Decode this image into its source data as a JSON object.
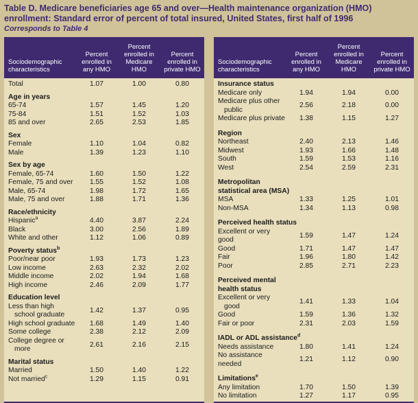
{
  "header": {
    "title": "Table D. Medicare beneficiaries age 65 and over—Health maintenance organization (HMO) enrollment: Standard error of percent of total insured, United States, first half of 1996",
    "subtitle": "Corresponds to Table 4"
  },
  "colors": {
    "purple": "#3f2a70",
    "page_background": "#d0c299",
    "table_background": "#e9dfbd",
    "header_text": "#ffffff"
  },
  "columns": [
    {
      "lines": [
        "Sociodemographic",
        "characteristics"
      ]
    },
    {
      "lines": [
        "Percent",
        "enrolled in",
        "any HMO"
      ]
    },
    {
      "lines": [
        "Percent",
        "enrolled in",
        "Medicare",
        "HMO"
      ]
    },
    {
      "lines": [
        "Percent",
        "enrolled in",
        "private HMO"
      ]
    }
  ],
  "tables": [
    {
      "name": "left",
      "rows": [
        {
          "t": "data",
          "label": "Total",
          "v": [
            "1.07",
            "1.00",
            "0.80"
          ]
        },
        {
          "t": "gap"
        },
        {
          "t": "sec",
          "label": "Age in years"
        },
        {
          "t": "data",
          "label": "65-74",
          "v": [
            "1.57",
            "1.45",
            "1.20"
          ]
        },
        {
          "t": "data",
          "label": "75-84",
          "v": [
            "1.51",
            "1.52",
            "1.03"
          ]
        },
        {
          "t": "data",
          "label": "85 and over",
          "v": [
            "2.65",
            "2.53",
            "1.85"
          ]
        },
        {
          "t": "gap"
        },
        {
          "t": "sec",
          "label": "Sex"
        },
        {
          "t": "data",
          "label": "Female",
          "v": [
            "1.10",
            "1.04",
            "0.82"
          ]
        },
        {
          "t": "data",
          "label": "Male",
          "v": [
            "1.39",
            "1.23",
            "1.10"
          ]
        },
        {
          "t": "gap"
        },
        {
          "t": "sec",
          "label": "Sex by age"
        },
        {
          "t": "data",
          "label": "Female, 65-74",
          "v": [
            "1.60",
            "1.50",
            "1.22"
          ]
        },
        {
          "t": "data",
          "label": "Female, 75 and over",
          "v": [
            "1.55",
            "1.52",
            "1.08"
          ]
        },
        {
          "t": "data",
          "label": "Male, 65-74",
          "v": [
            "1.98",
            "1.72",
            "1.65"
          ]
        },
        {
          "t": "data",
          "label": "Male, 75 and over",
          "v": [
            "1.88",
            "1.71",
            "1.36"
          ]
        },
        {
          "t": "gap"
        },
        {
          "t": "sec",
          "label": "Race/ethnicity"
        },
        {
          "t": "data",
          "label": "Hispanic^a",
          "v": [
            "4.40",
            "3.87",
            "2.24"
          ]
        },
        {
          "t": "data",
          "label": "Black",
          "v": [
            "3.00",
            "2.56",
            "1.89"
          ]
        },
        {
          "t": "data",
          "label": "White and other",
          "v": [
            "1.12",
            "1.06",
            "0.89"
          ]
        },
        {
          "t": "gap"
        },
        {
          "t": "sec",
          "label": "Poverty status^b"
        },
        {
          "t": "data",
          "label": "Poor/near poor",
          "v": [
            "1.93",
            "1.73",
            "1.23"
          ]
        },
        {
          "t": "data",
          "label": "Low income",
          "v": [
            "2.63",
            "2.32",
            "2.02"
          ]
        },
        {
          "t": "data",
          "label": "Middle income",
          "v": [
            "2.02",
            "1.94",
            "1.68"
          ]
        },
        {
          "t": "data",
          "label": "High income",
          "v": [
            "2.46",
            "2.09",
            "1.77"
          ]
        },
        {
          "t": "gap"
        },
        {
          "t": "sec",
          "label": "Education level"
        },
        {
          "t": "data2",
          "lines": [
            "Less than high",
            "school graduate"
          ],
          "v": [
            "1.42",
            "1.37",
            "0.95"
          ]
        },
        {
          "t": "data",
          "label": "High school graduate",
          "v": [
            "1.68",
            "1.49",
            "1.40"
          ]
        },
        {
          "t": "data",
          "label": "Some college",
          "v": [
            "2.38",
            "2.12",
            "2.09"
          ]
        },
        {
          "t": "data2",
          "lines": [
            "College degree or",
            "more"
          ],
          "v": [
            "2.61",
            "2.16",
            "2.15"
          ]
        },
        {
          "t": "gap"
        },
        {
          "t": "sec",
          "label": "Marital status"
        },
        {
          "t": "data",
          "label": "Married",
          "v": [
            "1.50",
            "1.40",
            "1.22"
          ]
        },
        {
          "t": "data",
          "label": "Not married^c",
          "v": [
            "1.29",
            "1.15",
            "0.91"
          ]
        }
      ]
    },
    {
      "name": "right",
      "rows": [
        {
          "t": "sec",
          "label": "Insurance status"
        },
        {
          "t": "data",
          "label": "Medicare only",
          "v": [
            "1.94",
            "1.94",
            "0.00"
          ]
        },
        {
          "t": "data2",
          "lines": [
            "Medicare plus other",
            "public"
          ],
          "v": [
            "2.56",
            "2.18",
            "0.00"
          ]
        },
        {
          "t": "data",
          "label": "Medicare plus private",
          "v": [
            "1.38",
            "1.15",
            "1.27"
          ]
        },
        {
          "t": "gap"
        },
        {
          "t": "sec",
          "label": "Region"
        },
        {
          "t": "data",
          "label": "Northeast",
          "v": [
            "2.40",
            "2.13",
            "1.46"
          ]
        },
        {
          "t": "data",
          "label": "Midwest",
          "v": [
            "1.93",
            "1.66",
            "1.48"
          ]
        },
        {
          "t": "data",
          "label": "South",
          "v": [
            "1.59",
            "1.53",
            "1.16"
          ]
        },
        {
          "t": "data",
          "label": "West",
          "v": [
            "2.54",
            "2.59",
            "2.31"
          ]
        },
        {
          "t": "gap"
        },
        {
          "t": "sec2",
          "lines": [
            "Metropolitan",
            "statistical area (MSA)"
          ]
        },
        {
          "t": "data",
          "label": "MSA",
          "v": [
            "1.33",
            "1.25",
            "1.01"
          ]
        },
        {
          "t": "data",
          "label": "Non-MSA",
          "v": [
            "1.34",
            "1.13",
            "0.98"
          ]
        },
        {
          "t": "gap"
        },
        {
          "t": "sec",
          "label": "Perceived health status"
        },
        {
          "t": "data",
          "label": "Excellent or very good",
          "v": [
            "1.59",
            "1.47",
            "1.24"
          ]
        },
        {
          "t": "data",
          "label": "Good",
          "v": [
            "1.71",
            "1.47",
            "1.47"
          ]
        },
        {
          "t": "data",
          "label": "Fair",
          "v": [
            "1.96",
            "1.80",
            "1.42"
          ]
        },
        {
          "t": "data",
          "label": "Poor",
          "v": [
            "2.85",
            "2.71",
            "2.23"
          ]
        },
        {
          "t": "gap"
        },
        {
          "t": "sec2",
          "lines": [
            "Perceived mental",
            "health status"
          ]
        },
        {
          "t": "data2",
          "lines": [
            "Excellent or very",
            "good"
          ],
          "v": [
            "1.41",
            "1.33",
            "1.04"
          ]
        },
        {
          "t": "data",
          "label": "Good",
          "v": [
            "1.59",
            "1.36",
            "1.32"
          ]
        },
        {
          "t": "data",
          "label": "Fair or poor",
          "v": [
            "2.31",
            "2.03",
            "1.59"
          ]
        },
        {
          "t": "gap"
        },
        {
          "t": "sec",
          "label": "IADL or ADL assistance^d"
        },
        {
          "t": "data",
          "label": "Needs assistance",
          "v": [
            "1.80",
            "1.41",
            "1.24"
          ]
        },
        {
          "t": "data",
          "label": "No assistance needed",
          "v": [
            "1.21",
            "1.12",
            "0.90"
          ]
        },
        {
          "t": "gap"
        },
        {
          "t": "sec",
          "label": "Limitations^e"
        },
        {
          "t": "data",
          "label": "Any limitation",
          "v": [
            "1.70",
            "1.50",
            "1.39"
          ]
        },
        {
          "t": "data",
          "label": "No limitation",
          "v": [
            "1.27",
            "1.17",
            "0.95"
          ]
        }
      ]
    }
  ]
}
